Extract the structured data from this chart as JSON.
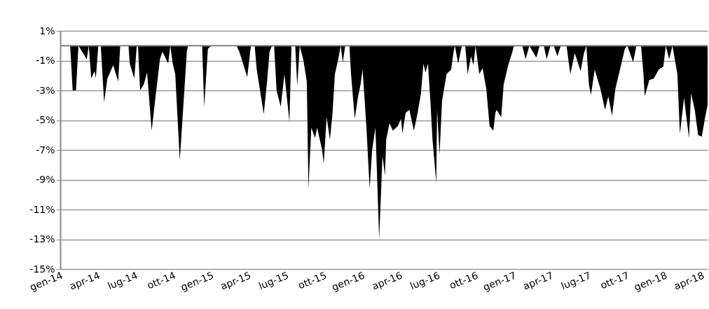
{
  "chart_data": {
    "type": "area",
    "color": "#000000",
    "x": [
      "2014-01-01",
      "2014-01-25",
      "2014-01-31",
      "2014-02-08",
      "2014-02-14",
      "2014-03-06",
      "2014-03-11",
      "2014-03-17",
      "2014-03-25",
      "2014-03-28",
      "2014-04-03",
      "2014-04-09",
      "2014-04-17",
      "2014-04-25",
      "2014-05-09",
      "2014-05-21",
      "2014-05-26",
      "2014-06-15",
      "2014-06-18",
      "2014-06-29",
      "2014-07-05",
      "2014-07-08",
      "2014-07-13",
      "2014-07-22",
      "2014-07-30",
      "2014-08-10",
      "2014-08-19",
      "2014-08-30",
      "2014-09-05",
      "2014-09-19",
      "2014-09-24",
      "2014-09-30",
      "2014-10-06",
      "2014-10-17",
      "2014-10-28",
      "2014-11-03",
      "2014-11-06",
      "2014-12-10",
      "2014-12-15",
      "2014-12-24",
      "2015-01-01",
      "2015-03-03",
      "2015-03-10",
      "2015-03-29",
      "2015-04-07",
      "2015-04-16",
      "2015-04-21",
      "2015-04-29",
      "2015-05-08",
      "2015-05-16",
      "2015-05-22",
      "2015-05-28",
      "2015-06-02",
      "2015-06-08",
      "2015-06-18",
      "2015-06-27",
      "2015-07-09",
      "2015-07-14",
      "2015-07-23",
      "2015-07-28",
      "2015-08-03",
      "2015-08-12",
      "2015-08-20",
      "2015-08-24",
      "2015-08-31",
      "2015-09-09",
      "2015-09-14",
      "2015-09-26",
      "2015-09-30",
      "2015-10-07",
      "2015-10-15",
      "2015-10-21",
      "2015-10-27",
      "2015-11-04",
      "2015-11-10",
      "2015-11-15",
      "2015-11-21",
      "2015-12-01",
      "2015-12-05",
      "2015-12-14",
      "2015-12-22",
      "2015-12-28",
      "2016-01-02",
      "2016-01-11",
      "2016-01-19",
      "2016-01-25",
      "2016-02-02",
      "2016-02-11",
      "2016-02-19",
      "2016-02-25",
      "2016-02-28",
      "2016-03-07",
      "2016-03-15",
      "2016-03-27",
      "2016-04-04",
      "2016-04-07",
      "2016-04-15",
      "2016-04-24",
      "2016-05-05",
      "2016-05-14",
      "2016-05-22",
      "2016-05-28",
      "2016-06-02",
      "2016-06-08",
      "2016-06-14",
      "2016-06-19",
      "2016-06-28",
      "2016-06-30",
      "2016-07-06",
      "2016-07-12",
      "2016-07-23",
      "2016-08-03",
      "2016-08-09",
      "2016-08-12",
      "2016-08-20",
      "2016-08-29",
      "2016-09-06",
      "2016-09-12",
      "2016-09-20",
      "2016-09-26",
      "2016-10-01",
      "2016-10-10",
      "2016-10-18",
      "2016-10-27",
      "2016-11-04",
      "2016-11-13",
      "2016-11-18",
      "2016-11-21",
      "2016-12-02",
      "2016-12-08",
      "2016-12-19",
      "2016-12-28",
      "2017-01-02",
      "2017-01-22",
      "2017-01-30",
      "2017-02-08",
      "2017-02-25",
      "2017-03-05",
      "2017-03-15",
      "2017-03-22",
      "2017-03-31",
      "2017-04-08",
      "2017-04-17",
      "2017-04-25",
      "2017-05-09",
      "2017-05-18",
      "2017-05-29",
      "2017-06-12",
      "2017-06-20",
      "2017-06-26",
      "2017-07-02",
      "2017-07-07",
      "2017-07-16",
      "2017-07-30",
      "2017-08-10",
      "2017-08-18",
      "2017-08-27",
      "2017-09-04",
      "2017-09-16",
      "2017-09-27",
      "2017-10-03",
      "2017-10-17",
      "2017-10-25",
      "2017-11-05",
      "2017-11-11",
      "2017-11-14",
      "2017-11-25",
      "2017-12-06",
      "2017-12-18",
      "2017-12-29",
      "2018-01-04",
      "2018-01-12",
      "2018-01-20",
      "2018-02-01",
      "2018-02-07",
      "2018-02-17",
      "2018-03-01",
      "2018-03-06",
      "2018-03-15",
      "2018-03-23",
      "2018-04-01",
      "2018-04-09",
      "2018-04-15"
    ],
    "values": [
      0,
      0,
      -3.0,
      -3.0,
      0,
      -0.9,
      0,
      -2.2,
      -1.7,
      -2.2,
      0,
      0,
      -3.8,
      -2.2,
      -1.3,
      -2.4,
      0,
      0,
      -1.2,
      -2.2,
      0,
      0,
      -3.0,
      -2.6,
      -1.8,
      -5.7,
      -3.5,
      -0.9,
      -0.4,
      -1.2,
      0,
      -1.2,
      -1.9,
      -7.7,
      -3.0,
      -0.4,
      0,
      0,
      -4.1,
      -0.2,
      0,
      0,
      -0.4,
      -2.1,
      0,
      0,
      -1.6,
      -3.0,
      -4.6,
      -2.4,
      -0.4,
      0,
      0,
      -3.0,
      -4.1,
      -1.9,
      -5.1,
      0,
      0,
      -2.7,
      0,
      -1.0,
      -2.4,
      -9.6,
      -5.5,
      -6.2,
      -5.5,
      -7.0,
      -7.9,
      -4.8,
      -6.3,
      -4.6,
      -1.9,
      -0.9,
      0,
      -1.1,
      0,
      0,
      -1.9,
      -4.9,
      -3.4,
      -2.6,
      -1.6,
      -5.4,
      -9.6,
      -7.0,
      -5.5,
      -13.0,
      -7.4,
      -8.7,
      -6.3,
      -5.2,
      -5.7,
      -5.4,
      -4.9,
      -5.9,
      -4.5,
      -4.3,
      -5.7,
      -4.5,
      -3.2,
      -1.2,
      -1.8,
      -1.2,
      -3.8,
      -6.3,
      -9.2,
      -4.3,
      -7.3,
      -3.7,
      -1.9,
      -1.6,
      -0.4,
      0,
      -1.2,
      0,
      0,
      -1.9,
      -0.7,
      -1.3,
      0,
      -1.9,
      -1.5,
      -2.9,
      -5.4,
      -5.7,
      -4.5,
      -4.3,
      -4.8,
      -2.6,
      -1.3,
      -0.5,
      0,
      0,
      -0.9,
      0,
      -0.8,
      0,
      0,
      -0.9,
      0,
      0,
      -0.7,
      0,
      0,
      -1.9,
      -0.5,
      -1.7,
      -0.5,
      0,
      -2.6,
      -3.3,
      -1.6,
      -2.9,
      -4.3,
      -3.4,
      -4.7,
      -2.9,
      -1.5,
      -0.2,
      0,
      -1.1,
      0,
      0,
      -1.9,
      -3.4,
      -2.3,
      -2.2,
      -1.6,
      -1.4,
      0,
      -0.9,
      0,
      -1.9,
      -5.9,
      -3.5,
      -6.2,
      -3.2,
      -4.3,
      -6.0,
      -6.1,
      -4.8,
      -4.0
    ],
    "xlim": [
      "2014-01-01",
      "2018-04-15"
    ],
    "xticks": [
      {
        "value": "2014-01-01",
        "label": "gen-14"
      },
      {
        "value": "2014-04-01",
        "label": "apr-14"
      },
      {
        "value": "2014-07-01",
        "label": "lug-14"
      },
      {
        "value": "2014-10-01",
        "label": "ott-14"
      },
      {
        "value": "2015-01-01",
        "label": "gen-15"
      },
      {
        "value": "2015-04-01",
        "label": "apr-15"
      },
      {
        "value": "2015-07-01",
        "label": "lug-15"
      },
      {
        "value": "2015-10-01",
        "label": "ott-15"
      },
      {
        "value": "2016-01-01",
        "label": "gen-16"
      },
      {
        "value": "2016-04-01",
        "label": "apr-16"
      },
      {
        "value": "2016-07-01",
        "label": "lug-16"
      },
      {
        "value": "2016-10-01",
        "label": "ott-16"
      },
      {
        "value": "2017-01-01",
        "label": "gen-17"
      },
      {
        "value": "2017-04-01",
        "label": "apr-17"
      },
      {
        "value": "2017-07-01",
        "label": "lug-17"
      },
      {
        "value": "2017-10-01",
        "label": "ott-17"
      },
      {
        "value": "2018-01-01",
        "label": "gen-18"
      },
      {
        "value": "2018-04-01",
        "label": "apr-18"
      }
    ],
    "ylim": [
      -15,
      1
    ],
    "yticks": [
      {
        "value": 1,
        "label": "1%"
      },
      {
        "value": -1,
        "label": "-1%"
      },
      {
        "value": -3,
        "label": "-3%"
      },
      {
        "value": -5,
        "label": "-5%"
      },
      {
        "value": -7,
        "label": "-7%"
      },
      {
        "value": -9,
        "label": "-9%"
      },
      {
        "value": -11,
        "label": "-11%"
      },
      {
        "value": -13,
        "label": "-13%"
      },
      {
        "value": -15,
        "label": "-15%"
      }
    ],
    "grid": "y",
    "ref_lines": [
      {
        "axis": "y",
        "value": 0,
        "color": "#808080"
      }
    ]
  }
}
